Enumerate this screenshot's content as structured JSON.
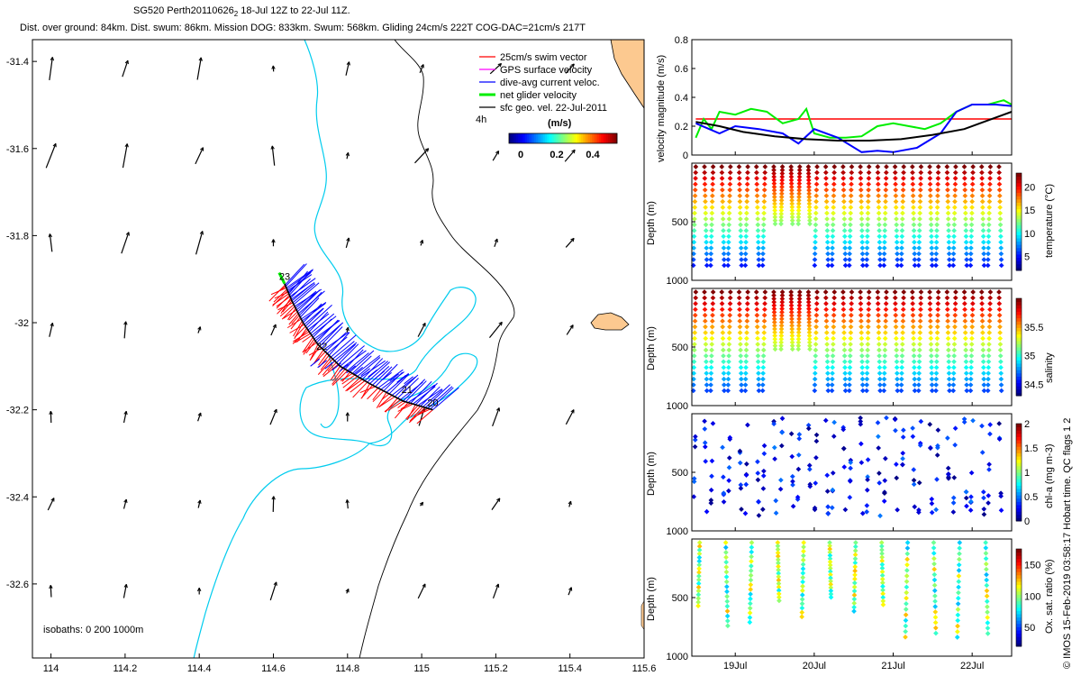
{
  "header": {
    "title_line": "SG520 Perth20110626",
    "title_sub": "2",
    "title_rest": " 18-Jul 12Z to 22-Jul 11Z.",
    "stats_line": "Dist. over ground: 84km. Dist. swum: 86km. Mission DOG: 833km. Swum: 568km. Gliding 24cm/s 222T COG-DAC=21cm/s 217T"
  },
  "credit": "© IMOS 15-Feb-2019 03:58:17 Hobart time. QC flags 1  2",
  "colors": {
    "swim": "#ff0000",
    "gps": "#ff00ff",
    "dac": "#0000ff",
    "net": "#00ee00",
    "geo": "#000000",
    "isobath": "#00ccee",
    "coast": "#000000",
    "land": "#fcc990"
  },
  "map_legend": {
    "items": [
      {
        "label": "25cm/s swim vector",
        "color": "#ff0000"
      },
      {
        "label": "GPS surface velocity",
        "color": "#ff00ff"
      },
      {
        "label": "dive-avg current veloc.",
        "color": "#0000ff"
      },
      {
        "label": "net glider velocity",
        "color": "#00ee00"
      },
      {
        "label": "sfc geo. vel. 22-Jul-2011",
        "color": "#000000"
      }
    ],
    "scale_hours": "4h",
    "colorbar_label": "(m/s)",
    "colorbar_ticks": [
      "0",
      "0.2",
      "0.4"
    ]
  },
  "isobaths_label": "isobaths: 0   200  1000m",
  "chart_data": [
    {
      "type": "scatter",
      "subtype": "map",
      "xlim": [
        113.95,
        115.6
      ],
      "ylim": [
        -32.77,
        -31.35
      ],
      "x_ticks": [
        "114",
        "114.2",
        "114.4",
        "114.6",
        "114.8",
        "115",
        "115.2",
        "115.4",
        "115.6"
      ],
      "y_ticks": [
        "-31.4",
        "-31.6",
        "-31.8",
        "-32",
        "-32.2",
        "-32.4",
        "-32.6"
      ],
      "track_labels": [
        {
          "text": "23",
          "lon": 114.63,
          "lat": -31.91
        },
        {
          "text": "22",
          "lon": 114.73,
          "lat": -32.07
        },
        {
          "text": "21",
          "lon": 114.96,
          "lat": -32.17
        },
        {
          "text": "20",
          "lon": 115.03,
          "lat": -32.2
        }
      ],
      "track": [
        [
          115.03,
          -32.2
        ],
        [
          114.95,
          -32.18
        ],
        [
          114.86,
          -32.14
        ],
        [
          114.78,
          -32.1
        ],
        [
          114.72,
          -32.05
        ],
        [
          114.68,
          -32.0
        ],
        [
          114.65,
          -31.95
        ],
        [
          114.63,
          -31.91
        ]
      ]
    },
    {
      "type": "line",
      "ylabel": "velocity magnitude (m/s)",
      "ylim": [
        0,
        0.8
      ],
      "y_ticks": [
        "0",
        "0.2",
        "0.4",
        "0.6",
        "0.8"
      ],
      "series": [
        {
          "color": "#ff0000",
          "x": [
            18.5,
            22.5
          ],
          "y": [
            0.25,
            0.25
          ]
        },
        {
          "color": "#00ee00",
          "x": [
            18.5,
            18.6,
            18.7,
            18.8,
            19.0,
            19.2,
            19.4,
            19.6,
            19.8,
            19.9,
            20.0,
            20.2,
            20.4,
            20.6,
            20.8,
            21.0,
            21.2,
            21.4,
            21.6,
            21.8,
            22.0,
            22.2,
            22.4,
            22.5
          ],
          "y": [
            0.12,
            0.25,
            0.18,
            0.3,
            0.28,
            0.32,
            0.3,
            0.22,
            0.25,
            0.32,
            0.15,
            0.12,
            0.12,
            0.13,
            0.2,
            0.22,
            0.2,
            0.18,
            0.22,
            0.3,
            0.35,
            0.35,
            0.38,
            0.35
          ]
        },
        {
          "color": "#0000ff",
          "x": [
            18.5,
            18.8,
            19.0,
            19.3,
            19.6,
            19.8,
            20.0,
            20.3,
            20.6,
            20.8,
            21.0,
            21.3,
            21.6,
            21.8,
            22.0,
            22.3,
            22.5
          ],
          "y": [
            0.22,
            0.15,
            0.2,
            0.18,
            0.15,
            0.08,
            0.18,
            0.12,
            0.02,
            0.03,
            0.02,
            0.05,
            0.15,
            0.3,
            0.35,
            0.35,
            0.34
          ]
        },
        {
          "color": "#000000",
          "x": [
            18.5,
            18.8,
            19.1,
            19.5,
            19.9,
            20.3,
            20.7,
            21.1,
            21.5,
            21.9,
            22.2,
            22.5
          ],
          "y": [
            0.23,
            0.2,
            0.16,
            0.13,
            0.11,
            0.1,
            0.1,
            0.11,
            0.14,
            0.18,
            0.24,
            0.3
          ]
        }
      ]
    },
    {
      "type": "scatter",
      "ylabel": "Depth (m)",
      "yticks": [
        "500",
        "1000"
      ],
      "colorbar_label": "temperature (°C)",
      "colorbar_ticks": [
        "5",
        "10",
        "15",
        "20"
      ],
      "value_range": [
        2,
        23
      ],
      "profile": "dive-climb columns, warm at surface, cold at depth"
    },
    {
      "type": "scatter",
      "ylabel": "Depth (m)",
      "yticks": [
        "500",
        "1000"
      ],
      "colorbar_label": "salinity",
      "colorbar_ticks": [
        "34.5",
        "35",
        "35.5"
      ],
      "value_range": [
        34.3,
        36.0
      ],
      "profile": "dive-climb columns, salty at surface"
    },
    {
      "type": "scatter",
      "ylabel": "Depth (m)",
      "yticks": [
        "500",
        "1000"
      ],
      "colorbar_label": "chl-a (mg m-3)",
      "colorbar_ticks": [
        "0",
        "0.5",
        "1",
        "1.5",
        "2"
      ],
      "value_range": [
        0,
        2
      ],
      "profile": "sparse points, mostly low"
    },
    {
      "type": "scatter",
      "ylabel": "Depth (m)",
      "yticks": [
        "500",
        "1000"
      ],
      "colorbar_label": "Ox. sat. ratio (%)",
      "colorbar_ticks": [
        "50",
        "100",
        "150"
      ],
      "value_range": [
        20,
        175
      ],
      "profile": "partial dives"
    }
  ],
  "time_axis": {
    "ticks": [
      "19Jul",
      "20Jul",
      "21Jul",
      "22Jul"
    ],
    "tick_days": [
      19,
      20,
      21,
      22
    ],
    "xlim_days": [
      18.45,
      22.5
    ]
  }
}
